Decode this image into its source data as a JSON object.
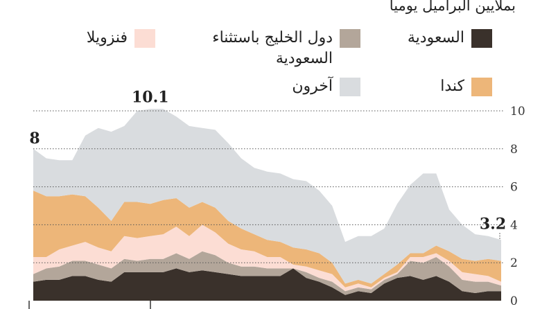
{
  "chart_data": {
    "type": "area",
    "stacked": true,
    "subtitle": "بملايين البراميل يوميا",
    "legend_position": "top",
    "x_ticks": [
      42,
      217
    ],
    "ylim": [
      0,
      10
    ],
    "y_ticks": [
      0,
      2,
      4,
      6,
      8,
      10
    ],
    "grid": "dotted horizontal",
    "annotations": [
      {
        "label": "8",
        "x": 1
      },
      {
        "label": "10.1",
        "x": 10
      },
      {
        "label": "3.2",
        "x": 37
      }
    ],
    "x": [
      1,
      2,
      3,
      4,
      5,
      6,
      7,
      8,
      9,
      10,
      11,
      12,
      13,
      14,
      15,
      16,
      17,
      18,
      19,
      20,
      21,
      22,
      23,
      24,
      25,
      26,
      27,
      28,
      29,
      30,
      31,
      32,
      33,
      34,
      35,
      36,
      37
    ],
    "series": [
      {
        "name": "السعودية",
        "color": "#3a312b",
        "values": [
          1.0,
          1.1,
          1.1,
          1.3,
          1.3,
          1.1,
          1.0,
          1.5,
          1.5,
          1.5,
          1.5,
          1.7,
          1.5,
          1.6,
          1.5,
          1.4,
          1.3,
          1.3,
          1.3,
          1.3,
          1.7,
          1.2,
          1.0,
          0.7,
          0.3,
          0.5,
          0.4,
          0.9,
          1.2,
          1.3,
          1.1,
          1.3,
          1.0,
          0.5,
          0.4,
          0.5,
          0.5
        ]
      },
      {
        "name": "دول الخليج باستثناء السعودية",
        "color": "#b3a69a",
        "values": [
          0.4,
          0.6,
          0.7,
          0.8,
          0.8,
          0.8,
          0.7,
          0.7,
          0.6,
          0.7,
          0.7,
          0.8,
          0.7,
          1.0,
          0.9,
          0.6,
          0.5,
          0.5,
          0.4,
          0.4,
          0.0,
          0.3,
          0.2,
          0.3,
          0.2,
          0.2,
          0.2,
          0.2,
          0.2,
          0.8,
          0.9,
          1.0,
          0.8,
          0.6,
          0.6,
          0.5,
          0.3
        ]
      },
      {
        "name": "فنزويلا",
        "color": "#fcddd4",
        "values": [
          0.9,
          0.6,
          0.9,
          0.8,
          1.0,
          0.9,
          0.9,
          1.2,
          1.2,
          1.2,
          1.3,
          1.4,
          1.2,
          1.4,
          1.2,
          1.0,
          0.9,
          0.8,
          0.6,
          0.6,
          0.2,
          0.3,
          0.4,
          0.4,
          0.2,
          0.2,
          0.1,
          0.1,
          0.1,
          0.2,
          0.3,
          0.2,
          0.3,
          0.4,
          0.4,
          0.3,
          0.2
        ]
      },
      {
        "name": "كندا",
        "color": "#edb679",
        "values": [
          3.5,
          3.2,
          2.8,
          2.7,
          2.4,
          2.1,
          1.6,
          1.8,
          1.9,
          1.7,
          1.8,
          1.5,
          1.5,
          1.2,
          1.3,
          1.2,
          1.1,
          0.9,
          0.9,
          0.8,
          0.9,
          0.9,
          0.9,
          0.6,
          0.2,
          0.2,
          0.2,
          0.2,
          0.4,
          0.2,
          0.2,
          0.4,
          0.5,
          0.7,
          0.7,
          0.9,
          1.1
        ]
      },
      {
        "name": "آخرون",
        "color": "#d9dcdf",
        "values": [
          2.2,
          2.0,
          1.9,
          1.8,
          3.2,
          4.2,
          4.7,
          4.0,
          4.8,
          5.0,
          4.8,
          4.3,
          4.3,
          3.9,
          4.1,
          4.1,
          3.7,
          3.5,
          3.6,
          3.6,
          3.6,
          3.6,
          3.3,
          3.0,
          2.2,
          2.3,
          2.5,
          2.4,
          3.2,
          3.6,
          4.2,
          3.8,
          2.2,
          1.8,
          1.4,
          1.2,
          1.1
        ]
      }
    ]
  }
}
